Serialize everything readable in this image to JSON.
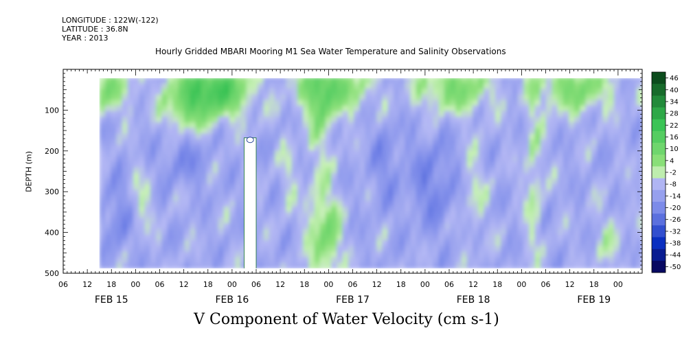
{
  "header": {
    "longitude": "LONGITUDE : 122W(-122)",
    "latitude": "LATITUDE : 36.8N",
    "year": "YEAR : 2013"
  },
  "chart_data": {
    "type": "heatmap",
    "title": "Hourly Gridded MBARI Mooring M1 Sea Water Temperature and Salinity Observations",
    "xlabel": "V Component of Water Velocity (cm s-1)",
    "ylabel": "DEPTH (m)",
    "x_hour_ticks": [
      "06",
      "12",
      "18",
      "00",
      "06",
      "12",
      "18",
      "00",
      "06",
      "12",
      "18",
      "00",
      "06",
      "12",
      "18",
      "00",
      "06",
      "12",
      "18",
      "00",
      "06",
      "12",
      "18",
      "00"
    ],
    "x_day_labels": [
      "FEB 15",
      "FEB 16",
      "FEB 17",
      "FEB 18",
      "FEB 19"
    ],
    "x_range_hours": [
      0,
      144
    ],
    "data_start_hour": 9,
    "y_ticks": [
      100,
      200,
      300,
      400,
      500
    ],
    "ylim": [
      500,
      0
    ],
    "depth_range": [
      20,
      488
    ],
    "gap": {
      "hour_start": 45,
      "hour_end": 48,
      "depth_top": 168
    },
    "colorbar": {
      "levels": [
        46,
        40,
        34,
        28,
        22,
        16,
        10,
        4,
        -2,
        -8,
        -14,
        -20,
        -26,
        -32,
        -38,
        -44,
        -50
      ],
      "labels": [
        "46",
        "40",
        "34",
        "28",
        "22",
        "16",
        "10",
        "4",
        "-2",
        "-8",
        "-14",
        "-20",
        "-26",
        "-32",
        "-38",
        "-44",
        "-50"
      ],
      "vmin": -50,
      "vmax": 52
    },
    "colors": {
      "strong_positive": "#063d16",
      "positive": "#37c254",
      "weak_positive": "#8de07a",
      "weak_negative": "#b4b8f4",
      "negative": "#6f80e6",
      "strong_negative": "#08004a"
    }
  }
}
